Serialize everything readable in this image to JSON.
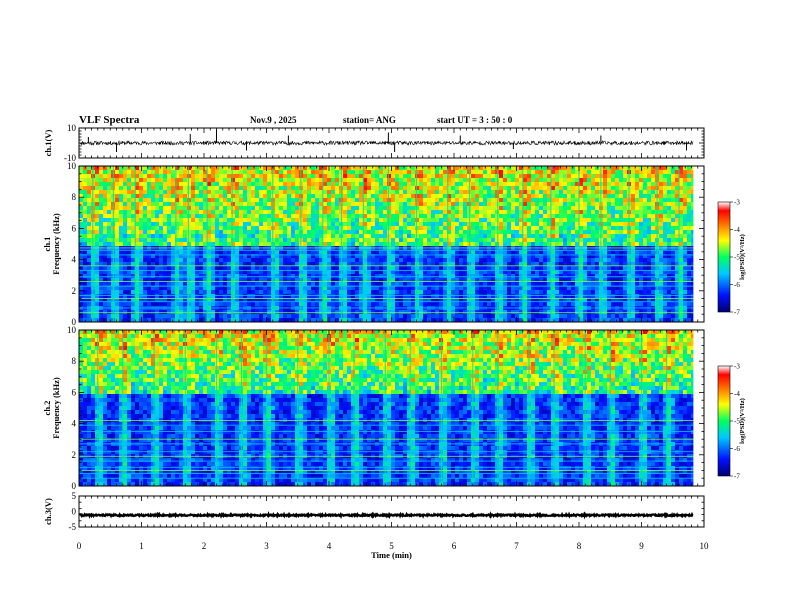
{
  "header": {
    "title": "VLF Spectra",
    "date": "Nov.9  , 2025",
    "station": "station= ANG",
    "start": "start  UT  =   3  : 50 : 0"
  },
  "colors": {
    "c1": "#000070",
    "c2": "#0010ff",
    "c3": "#00c8ff",
    "c4": "#00ff60",
    "c5": "#ffff00",
    "c6": "#ff7000",
    "c7": "#ff0000",
    "c8": "#ffffff"
  },
  "chart_data": [
    {
      "type": "line",
      "name": "ch1-waveform",
      "ylabel": "ch.1(V)",
      "ylim": [
        -10,
        10
      ],
      "yticks": [
        "10",
        "-10"
      ],
      "xlim": [
        0,
        10
      ],
      "baseline": 0,
      "noise_amplitude": 1.3,
      "spikes": [
        {
          "x": 0.15,
          "y": 4
        },
        {
          "x": 0.6,
          "y": -6
        },
        {
          "x": 1.78,
          "y": 6
        },
        {
          "x": 2.2,
          "y": 9
        },
        {
          "x": 2.68,
          "y": -5
        },
        {
          "x": 3.35,
          "y": 5
        },
        {
          "x": 4.95,
          "y": 7
        },
        {
          "x": 5.05,
          "y": -6
        },
        {
          "x": 6.1,
          "y": 5
        },
        {
          "x": 6.95,
          "y": -4
        },
        {
          "x": 8.35,
          "y": 5
        },
        {
          "x": 9.72,
          "y": -5
        }
      ]
    },
    {
      "type": "heatmap",
      "name": "ch1-spectrogram",
      "ylabel": "ch.1\nFrequency  (kHz)",
      "ylim": [
        0,
        10
      ],
      "yticks": [
        "0",
        "2",
        "4",
        "6",
        "8",
        "10"
      ],
      "xlim": [
        0,
        9.83
      ],
      "colorbar": {
        "label": "log(PSD)(V²/Hz)",
        "range": [
          -7,
          -3
        ],
        "ticks": [
          "-3",
          "-4",
          "-5",
          "-6",
          "-7"
        ]
      },
      "low_band_khz": 4.8,
      "noise_lines_khz": [
        4.75,
        4.6,
        4.3,
        3.6,
        3.3,
        2.9,
        2.6,
        2.3,
        1.7,
        1.5,
        1.3,
        0.9,
        0.6
      ],
      "sferic_times_min": [
        0.22,
        0.55,
        0.9,
        1.55,
        1.75,
        2.05,
        2.45,
        3.1,
        3.55,
        3.9,
        4.2,
        4.55,
        4.95,
        5.4,
        5.9,
        6.25,
        6.7,
        7.1,
        7.55,
        8.0,
        8.35,
        8.8,
        9.25,
        9.6
      ]
    },
    {
      "type": "heatmap",
      "name": "ch2-spectrogram",
      "ylabel": "ch.2\nFrequency  (kHz)",
      "ylim": [
        0,
        10
      ],
      "yticks": [
        "0",
        "2",
        "4",
        "6",
        "8",
        "10"
      ],
      "xlim": [
        0,
        9.83
      ],
      "colorbar": {
        "label": "log(PSD)(V²/Hz)",
        "range": [
          -7,
          -3
        ],
        "ticks": [
          "-3",
          "-4",
          "-5",
          "-6",
          "-7"
        ]
      },
      "low_band_khz": 6.0,
      "noise_lines_khz": [
        4.2,
        3.9,
        3.5,
        3.0,
        2.7,
        2.2,
        1.9,
        1.6,
        1.2,
        1.0,
        0.8,
        0.5
      ],
      "sferic_times_min": [
        0.3,
        0.7,
        1.2,
        1.7,
        2.2,
        2.6,
        3.0,
        3.5,
        4.0,
        4.4,
        4.9,
        5.3,
        5.8,
        6.3,
        6.7,
        7.2,
        7.6,
        8.1,
        8.5,
        9.0,
        9.4
      ]
    },
    {
      "type": "line",
      "name": "ch3-waveform",
      "ylabel": "ch.3(V)",
      "ylim": [
        -5,
        5
      ],
      "yticks": [
        "5",
        "0",
        "-5"
      ],
      "xlim": [
        0,
        10
      ],
      "baseline": -1.2,
      "noise_amplitude": 0.25,
      "xlabel": "Time  (min)",
      "xticks": [
        "0",
        "1",
        "2",
        "3",
        "4",
        "5",
        "6",
        "7",
        "8",
        "9",
        "10"
      ]
    }
  ]
}
